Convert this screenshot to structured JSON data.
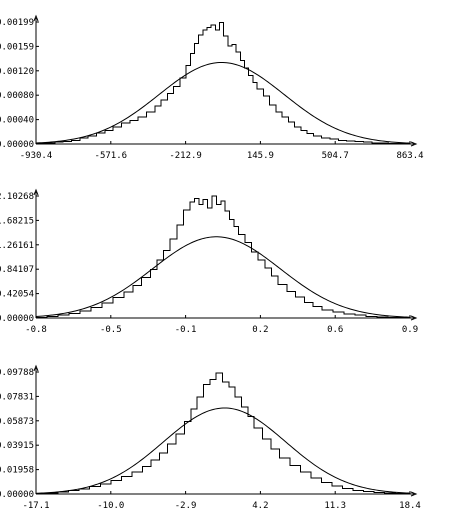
{
  "chart_data": [
    {
      "type": "line",
      "title": "",
      "xlabel": "",
      "ylabel": "",
      "xlim": [
        -930.4,
        863.4
      ],
      "ylim": [
        0,
        0.00199
      ],
      "x_ticks": [
        "-930.4",
        "-571.6",
        "-212.9",
        "145.9",
        "504.7",
        "863.4"
      ],
      "y_ticks": [
        "0.00000",
        "0.00040",
        "0.00080",
        "0.00120",
        "0.00159",
        "0.00199"
      ],
      "series": [
        {
          "kind": "histogram-step",
          "x": [
            -930.4,
            -880,
            -840,
            -800,
            -760,
            -720,
            -680,
            -640,
            -600,
            -560,
            -520,
            -480,
            -440,
            -400,
            -360,
            -330,
            -300,
            -270,
            -240,
            -210,
            -190,
            -170,
            -150,
            -130,
            -110,
            -90,
            -70,
            -50,
            -30,
            -10,
            10,
            30,
            50,
            70,
            90,
            110,
            130,
            160,
            190,
            220,
            250,
            280,
            310,
            340,
            370,
            400,
            440,
            480,
            520,
            560,
            600,
            640,
            680,
            720,
            760,
            800,
            863.4
          ],
          "values": [
            1e-05,
            2e-05,
            3e-05,
            4e-05,
            6e-05,
            0.0001,
            0.00013,
            0.00018,
            0.00022,
            0.00028,
            0.00034,
            0.00038,
            0.00044,
            0.00052,
            0.00062,
            0.00072,
            0.00082,
            0.00094,
            0.00108,
            0.00128,
            0.00148,
            0.00164,
            0.00178,
            0.00186,
            0.0019,
            0.00194,
            0.00186,
            0.00198,
            0.00176,
            0.0016,
            0.00162,
            0.0015,
            0.00136,
            0.00124,
            0.00112,
            0.001,
            0.0009,
            0.00078,
            0.00064,
            0.00052,
            0.00044,
            0.00036,
            0.00028,
            0.00022,
            0.00017,
            0.00013,
            0.0001,
            8e-05,
            6e-05,
            5e-05,
            4e-05,
            3e-05,
            2e-05,
            2e-05,
            1e-05,
            1e-05,
            0
          ]
        },
        {
          "kind": "normal-curve",
          "mean": -40,
          "sd": 300,
          "peak": 0.00133
        }
      ]
    },
    {
      "type": "line",
      "title": "",
      "xlabel": "",
      "ylabel": "",
      "xlim": [
        -0.8,
        0.9
      ],
      "ylim": [
        0,
        2.10268
      ],
      "x_ticks": [
        "-0.8",
        "-0.5",
        "-0.1",
        "0.2",
        "0.6",
        "0.9"
      ],
      "y_ticks": [
        "0.00000",
        "0.42054",
        "0.84107",
        "1.26161",
        "1.68215",
        "2.10268"
      ],
      "series": [
        {
          "kind": "histogram-step",
          "x": [
            -0.8,
            -0.75,
            -0.7,
            -0.65,
            -0.6,
            -0.55,
            -0.5,
            -0.45,
            -0.4,
            -0.36,
            -0.32,
            -0.28,
            -0.25,
            -0.22,
            -0.19,
            -0.16,
            -0.13,
            -0.1,
            -0.08,
            -0.06,
            -0.04,
            -0.02,
            0,
            0.02,
            0.04,
            0.06,
            0.08,
            0.1,
            0.12,
            0.15,
            0.18,
            0.21,
            0.24,
            0.27,
            0.3,
            0.34,
            0.38,
            0.42,
            0.46,
            0.5,
            0.55,
            0.6,
            0.65,
            0.7,
            0.75,
            0.8,
            0.9
          ],
          "values": [
            0.01,
            0.03,
            0.05,
            0.08,
            0.12,
            0.18,
            0.26,
            0.35,
            0.45,
            0.56,
            0.7,
            0.84,
            1.0,
            1.16,
            1.36,
            1.6,
            1.86,
            2.0,
            2.06,
            1.96,
            2.04,
            1.9,
            2.1,
            1.96,
            2.02,
            1.84,
            1.7,
            1.58,
            1.44,
            1.3,
            1.14,
            1.0,
            0.86,
            0.72,
            0.58,
            0.46,
            0.36,
            0.27,
            0.2,
            0.14,
            0.1,
            0.07,
            0.05,
            0.03,
            0.02,
            0.01,
            0
          ]
        },
        {
          "kind": "normal-curve",
          "mean": 0.02,
          "sd": 0.29,
          "peak": 1.4
        }
      ]
    },
    {
      "type": "line",
      "title": "",
      "xlabel": "",
      "ylabel": "",
      "xlim": [
        -17.1,
        18.4
      ],
      "ylim": [
        0,
        0.09788
      ],
      "x_ticks": [
        "-17.1",
        "-10.0",
        "-2.9",
        "4.2",
        "11.3",
        "18.4"
      ],
      "y_ticks": [
        "0.00000",
        "0.01958",
        "0.03915",
        "0.05873",
        "0.07831",
        "0.09788"
      ],
      "series": [
        {
          "kind": "histogram-step",
          "x": [
            -17.1,
            -16,
            -15,
            -14,
            -13,
            -12,
            -11,
            -10,
            -9,
            -8,
            -7,
            -6.2,
            -5.4,
            -4.6,
            -3.8,
            -3.0,
            -2.4,
            -1.8,
            -1.2,
            -0.6,
            0,
            0.6,
            1.2,
            1.8,
            2.4,
            3.0,
            3.6,
            4.4,
            5.2,
            6.0,
            7.0,
            8.0,
            9.0,
            10.0,
            11.0,
            12.0,
            13.0,
            14.0,
            15.0,
            16.0,
            17.0,
            18.4
          ],
          "values": [
            0.0005,
            0.001,
            0.0018,
            0.0028,
            0.0042,
            0.006,
            0.0082,
            0.0108,
            0.014,
            0.0176,
            0.022,
            0.0272,
            0.033,
            0.04,
            0.048,
            0.058,
            0.068,
            0.078,
            0.088,
            0.092,
            0.097,
            0.09,
            0.086,
            0.078,
            0.07,
            0.062,
            0.053,
            0.044,
            0.036,
            0.029,
            0.023,
            0.0176,
            0.013,
            0.0094,
            0.0066,
            0.0046,
            0.003,
            0.002,
            0.0012,
            0.0007,
            0.0004,
            0
          ]
        },
        {
          "kind": "normal-curve",
          "mean": 0.8,
          "sd": 5.8,
          "peak": 0.069
        }
      ]
    }
  ]
}
